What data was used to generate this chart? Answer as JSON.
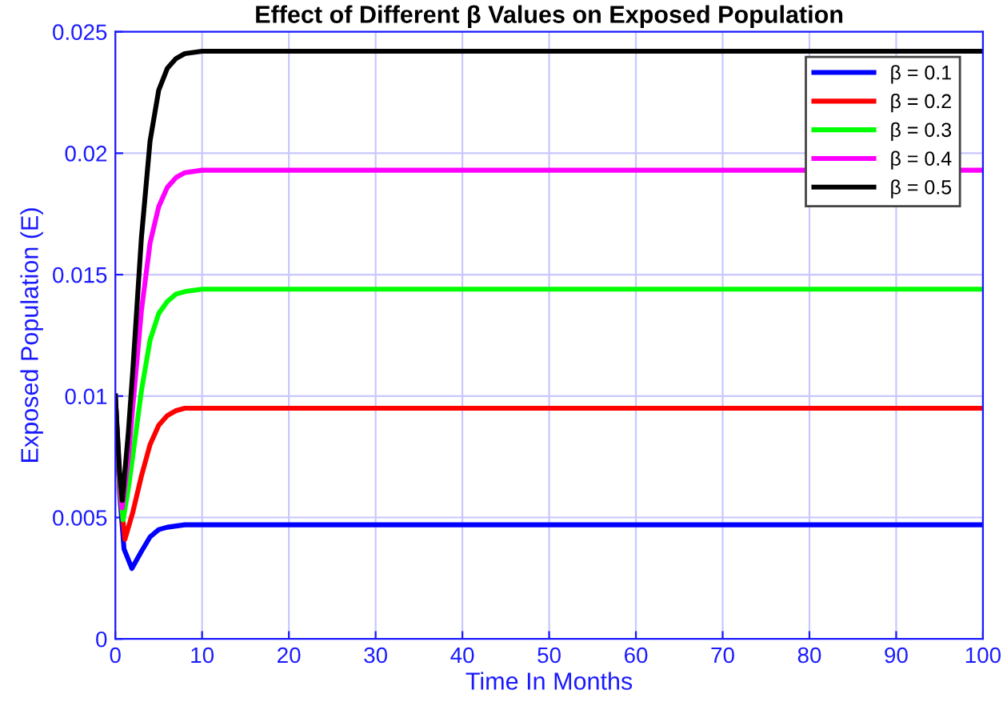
{
  "chart_data": {
    "type": "line",
    "title": "Effect of Different β Values on Exposed Population",
    "xlabel": "Time In Months",
    "ylabel": "Exposed Population (E)",
    "xlim": [
      0,
      100
    ],
    "xticks": [
      0,
      10,
      20,
      30,
      40,
      50,
      60,
      70,
      80,
      90,
      100
    ],
    "ylim": [
      0,
      0.025
    ],
    "yticks": [
      0,
      0.005,
      0.01,
      0.015,
      0.02,
      0.025
    ],
    "grid": true,
    "legend": "top right",
    "marker": "none",
    "line_style": "solid",
    "series": [
      {
        "name": "β = 0.1",
        "color": "#0000ff",
        "x": [
          0,
          0.5,
          1,
          1.9,
          3,
          4,
          5,
          6,
          8,
          10,
          100
        ],
        "values": [
          0.01,
          0.006,
          0.0037,
          0.0029,
          0.0036,
          0.0042,
          0.0045,
          0.0046,
          0.0047,
          0.0047,
          0.0047
        ]
      },
      {
        "name": "β = 0.2",
        "color": "#ff0000",
        "x": [
          0,
          0.5,
          1.1,
          2,
          3,
          4,
          5,
          6,
          7,
          8,
          10,
          100
        ],
        "values": [
          0.01,
          0.0062,
          0.0041,
          0.0052,
          0.0067,
          0.008,
          0.0088,
          0.0092,
          0.0094,
          0.0095,
          0.0095,
          0.0095
        ]
      },
      {
        "name": "β = 0.3",
        "color": "#00ff00",
        "x": [
          0,
          0.5,
          0.9,
          1.5,
          2,
          3,
          4,
          5,
          6,
          7,
          8,
          10,
          100
        ],
        "values": [
          0.01,
          0.0064,
          0.0049,
          0.0062,
          0.0075,
          0.0102,
          0.0123,
          0.0134,
          0.0139,
          0.0142,
          0.0143,
          0.0144,
          0.0144
        ]
      },
      {
        "name": "β = 0.4",
        "color": "#ff00ff",
        "x": [
          0,
          0.5,
          0.8,
          1.5,
          2,
          3,
          4,
          5,
          6,
          7,
          8,
          10,
          100
        ],
        "values": [
          0.01,
          0.0066,
          0.0054,
          0.0075,
          0.0095,
          0.0135,
          0.0163,
          0.0178,
          0.0186,
          0.019,
          0.0192,
          0.0193,
          0.0193
        ]
      },
      {
        "name": "β = 0.5",
        "color": "#000000",
        "x": [
          0,
          0.5,
          0.8,
          1.5,
          2,
          3,
          4,
          5,
          6,
          7,
          8,
          10,
          100
        ],
        "values": [
          0.01,
          0.0068,
          0.0057,
          0.0085,
          0.011,
          0.0165,
          0.0205,
          0.0226,
          0.0235,
          0.0239,
          0.0241,
          0.0242,
          0.0242
        ]
      }
    ]
  }
}
